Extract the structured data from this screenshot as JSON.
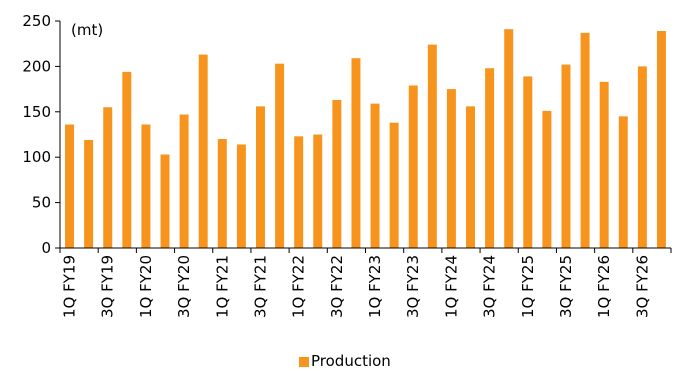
{
  "colors": {
    "bar": "#F7941D",
    "axis": "#000000"
  },
  "chart_data": {
    "type": "bar",
    "unit_label": "(mt)",
    "ylim": [
      0,
      250
    ],
    "yticks": [
      0,
      50,
      100,
      150,
      200,
      250
    ],
    "grid": false,
    "legend_position": "bottom",
    "categories": [
      "1Q FY19",
      "2Q FY19",
      "3Q FY19",
      "4Q FY19",
      "1Q FY20",
      "2Q FY20",
      "3Q FY20",
      "4Q FY20",
      "1Q FY21",
      "2Q FY21",
      "3Q FY21",
      "4Q FY21",
      "1Q FY22",
      "2Q FY22",
      "3Q FY22",
      "4Q FY22",
      "1Q FY23",
      "2Q FY23",
      "3Q FY23",
      "4Q FY23",
      "1Q FY24",
      "2Q FY24",
      "3Q FY24",
      "4Q FY24",
      "1Q FY25",
      "2Q FY25",
      "3Q FY25",
      "4Q FY25",
      "1Q FY26",
      "2Q FY26",
      "3Q FY26",
      "4Q FY26"
    ],
    "tick_labels": [
      "1Q FY19",
      "3Q FY19",
      "1Q FY20",
      "3Q FY20",
      "1Q FY21",
      "3Q FY21",
      "1Q FY22",
      "3Q FY22",
      "1Q FY23",
      "3Q FY23",
      "1Q FY24",
      "3Q FY24",
      "1Q FY25",
      "3Q FY25",
      "1Q FY26",
      "3Q FY26"
    ],
    "series": [
      {
        "name": "Production",
        "values": [
          136,
          119,
          155,
          194,
          136,
          103,
          147,
          213,
          120,
          114,
          156,
          203,
          123,
          125,
          163,
          209,
          159,
          138,
          179,
          224,
          175,
          156,
          198,
          241,
          189,
          151,
          202,
          237,
          183,
          145,
          200,
          239
        ]
      }
    ]
  }
}
